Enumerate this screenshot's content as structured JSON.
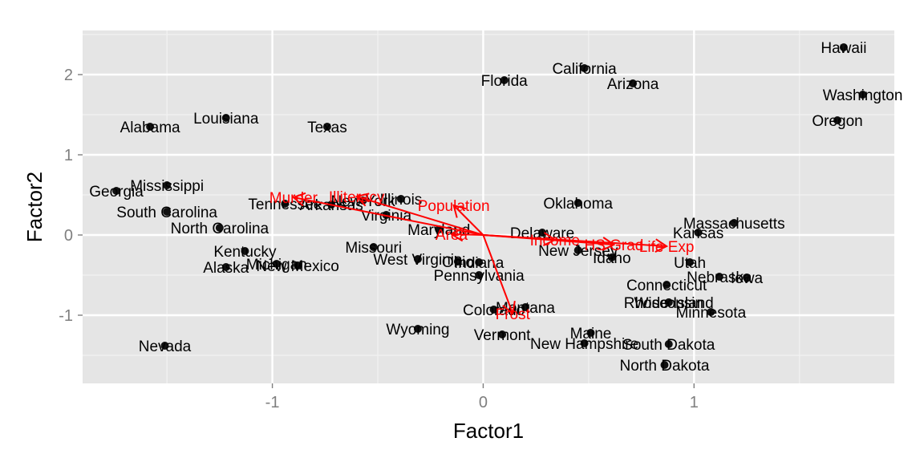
{
  "chart_data": {
    "type": "scatter",
    "xlabel": "Factor1",
    "ylabel": "Factor2",
    "xlim": [
      -1.9,
      1.95
    ],
    "ylim": [
      -1.85,
      2.55
    ],
    "xticks": [
      -1,
      0,
      1
    ],
    "yticks": [
      -1,
      0,
      1,
      2
    ],
    "xtick_labels": [
      "-1",
      "0",
      "1"
    ],
    "ytick_labels": [
      "-1",
      "0",
      "1",
      "2"
    ],
    "grid": true,
    "background": "#e5e5e5",
    "point_color": "#111111",
    "arrow_color": "#ff0000",
    "points": [
      {
        "label": "Alabama",
        "x": -1.58,
        "y": 1.35
      },
      {
        "label": "Alaska",
        "x": -1.22,
        "y": -0.4
      },
      {
        "label": "Arizona",
        "x": 0.71,
        "y": 1.89
      },
      {
        "label": "Arkansas",
        "x": -0.72,
        "y": 0.38
      },
      {
        "label": "California",
        "x": 0.48,
        "y": 2.08
      },
      {
        "label": "Colorado",
        "x": 0.05,
        "y": -0.93
      },
      {
        "label": "Connecticut",
        "x": 0.87,
        "y": -0.62
      },
      {
        "label": "Delaware",
        "x": 0.28,
        "y": 0.03
      },
      {
        "label": "Florida",
        "x": 0.1,
        "y": 1.93
      },
      {
        "label": "Georgia",
        "x": -1.74,
        "y": 0.55
      },
      {
        "label": "Hawaii",
        "x": 1.71,
        "y": 2.34
      },
      {
        "label": "Idaho",
        "x": 0.61,
        "y": -0.28
      },
      {
        "label": "Illinois",
        "x": -0.39,
        "y": 0.45
      },
      {
        "label": "Indiana",
        "x": -0.02,
        "y": -0.34
      },
      {
        "label": "Iowa",
        "x": 1.25,
        "y": -0.53
      },
      {
        "label": "Kansas",
        "x": 1.02,
        "y": 0.03
      },
      {
        "label": "Kentucky",
        "x": -1.13,
        "y": -0.2
      },
      {
        "label": "Louisiana",
        "x": -1.22,
        "y": 1.46
      },
      {
        "label": "Maine",
        "x": 0.51,
        "y": -1.22
      },
      {
        "label": "Maryland",
        "x": -0.21,
        "y": 0.07
      },
      {
        "label": "Massachusetts",
        "x": 1.19,
        "y": 0.15
      },
      {
        "label": "Michigan",
        "x": -0.98,
        "y": -0.36
      },
      {
        "label": "Minnesota",
        "x": 1.08,
        "y": -0.96
      },
      {
        "label": "Mississippi",
        "x": -1.5,
        "y": 0.62
      },
      {
        "label": "Missouri",
        "x": -0.52,
        "y": -0.15
      },
      {
        "label": "Montana",
        "x": 0.2,
        "y": -0.9
      },
      {
        "label": "Nebraska",
        "x": 1.12,
        "y": -0.52
      },
      {
        "label": "Nevada",
        "x": -1.51,
        "y": -1.38
      },
      {
        "label": "New Hampshire",
        "x": 0.48,
        "y": -1.35
      },
      {
        "label": "New Jersey",
        "x": 0.45,
        "y": -0.19
      },
      {
        "label": "New Mexico",
        "x": -0.88,
        "y": -0.38
      },
      {
        "label": "New York",
        "x": -0.57,
        "y": 0.43
      },
      {
        "label": "North Carolina",
        "x": -1.25,
        "y": 0.09
      },
      {
        "label": "North Dakota",
        "x": 0.86,
        "y": -1.62
      },
      {
        "label": "Ohio",
        "x": -0.12,
        "y": -0.33
      },
      {
        "label": "Oklahoma",
        "x": 0.45,
        "y": 0.4
      },
      {
        "label": "Oregon",
        "x": 1.68,
        "y": 1.43
      },
      {
        "label": "Pennsylvania",
        "x": -0.02,
        "y": -0.5
      },
      {
        "label": "Rhode Island",
        "x": 0.88,
        "y": -0.84
      },
      {
        "label": "South Carolina",
        "x": -1.5,
        "y": 0.29
      },
      {
        "label": "South Dakota",
        "x": 0.88,
        "y": -1.36
      },
      {
        "label": "Tennessee",
        "x": -0.94,
        "y": 0.39
      },
      {
        "label": "Texas",
        "x": -0.74,
        "y": 1.35
      },
      {
        "label": "Utah",
        "x": 0.98,
        "y": -0.34
      },
      {
        "label": "Vermont",
        "x": 0.09,
        "y": -1.24
      },
      {
        "label": "Virginia",
        "x": -0.46,
        "y": 0.25
      },
      {
        "label": "Washington",
        "x": 1.8,
        "y": 1.75
      },
      {
        "label": "West Virginia",
        "x": -0.31,
        "y": -0.3
      },
      {
        "label": "Wisconsin",
        "x": 0.88,
        "y": -0.84
      },
      {
        "label": "Wyoming",
        "x": -0.31,
        "y": -1.17
      }
    ],
    "arrows": [
      {
        "label": "Population",
        "x": -0.14,
        "y": 0.37
      },
      {
        "label": "Income",
        "x": 0.34,
        "y": -0.06
      },
      {
        "label": "Illiteracy",
        "x": -0.6,
        "y": 0.48
      },
      {
        "label": "Life Exp",
        "x": 0.87,
        "y": -0.14
      },
      {
        "label": "Murder",
        "x": -0.9,
        "y": 0.47
      },
      {
        "label": "HS Grad",
        "x": 0.62,
        "y": -0.12
      },
      {
        "label": "Frost",
        "x": 0.14,
        "y": -0.98
      },
      {
        "label": "Area",
        "x": -0.15,
        "y": 0.01
      }
    ]
  }
}
